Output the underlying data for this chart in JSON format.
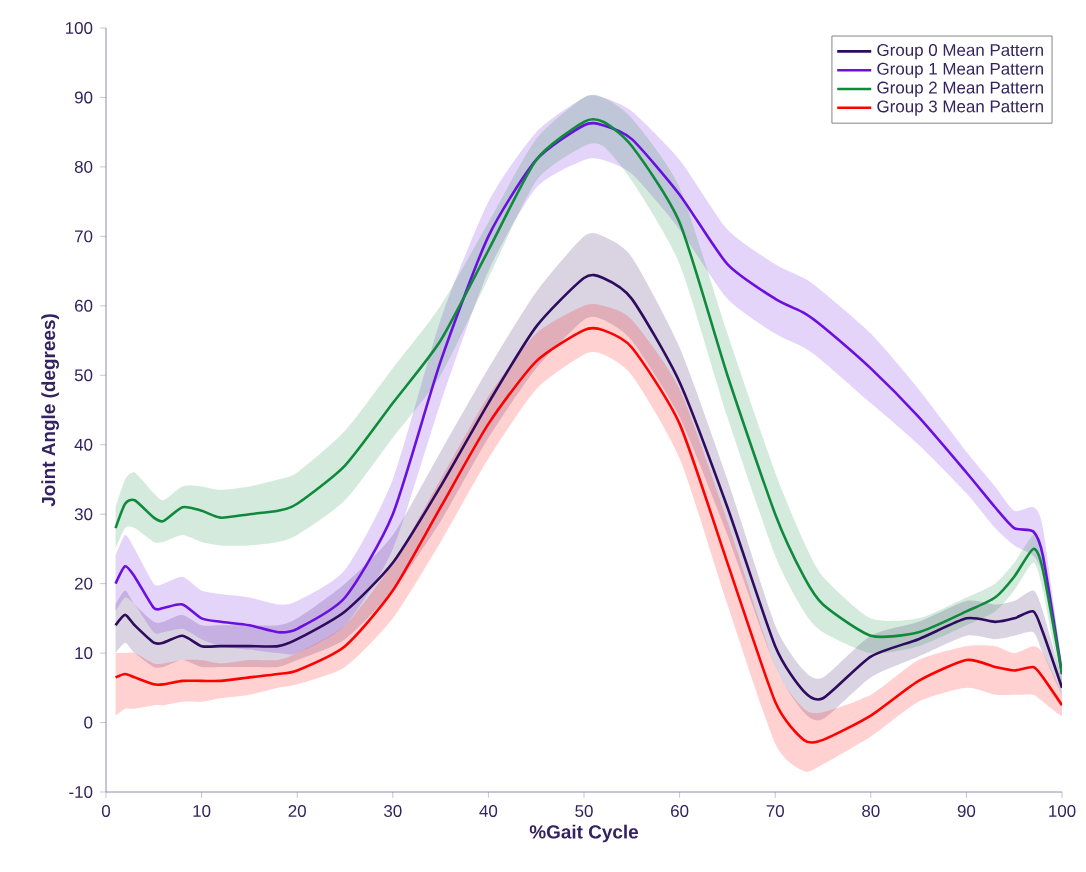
{
  "chart_data": {
    "type": "line",
    "xlabel": "%Gait Cycle",
    "ylabel": "Joint Angle (degrees)",
    "xlim": [
      0,
      100
    ],
    "ylim": [
      -10,
      100
    ],
    "xticks": [
      0,
      10,
      20,
      30,
      40,
      50,
      60,
      70,
      80,
      90,
      100
    ],
    "yticks": [
      -10,
      0,
      10,
      20,
      30,
      40,
      50,
      60,
      70,
      80,
      90,
      100
    ],
    "grid": false,
    "legend": "top right",
    "marker": "none",
    "line_style": "solid",
    "x": [
      1,
      2,
      3,
      5,
      6,
      8,
      10,
      12,
      15,
      18,
      20,
      25,
      30,
      35,
      40,
      45,
      50,
      52,
      55,
      60,
      65,
      70,
      73,
      75,
      80,
      85,
      90,
      93,
      95,
      97,
      98,
      100
    ],
    "series": [
      {
        "name": "Group 0 Mean Pattern",
        "color": "#2e0b5e",
        "values": [
          14,
          15.5,
          14,
          11.5,
          11.5,
          12.5,
          11,
          11,
          11,
          11,
          12,
          16,
          23,
          34,
          46,
          57,
          64,
          64,
          61,
          49,
          31,
          11,
          4.5,
          3.5,
          9.5,
          12,
          15,
          14.5,
          15,
          16,
          13,
          5
        ],
        "lower": [
          10,
          11.5,
          10,
          8,
          8,
          9,
          8,
          8,
          8,
          8,
          9,
          12,
          19,
          29,
          41,
          51,
          58,
          58,
          55,
          44,
          27,
          8,
          1.5,
          0.5,
          6.5,
          9.5,
          12.5,
          12,
          12.5,
          13,
          10,
          4
        ],
        "upper": [
          17,
          19,
          17,
          14.5,
          14.5,
          15.5,
          14,
          14,
          14,
          14,
          15,
          20,
          27,
          39,
          51,
          62,
          70,
          70,
          67,
          54,
          35,
          14,
          7.5,
          6.5,
          12.5,
          14.5,
          17.5,
          17,
          17.5,
          19,
          16,
          6
        ]
      },
      {
        "name": "Group 1 Mean Pattern",
        "color": "#6a0fe0",
        "values": [
          20,
          22.5,
          21,
          16.5,
          16.5,
          17,
          15,
          14.5,
          14,
          13,
          13.5,
          18,
          30,
          52,
          70,
          81,
          86,
          86,
          84,
          76,
          66,
          61,
          59,
          57,
          51,
          44,
          36,
          31,
          28,
          27.5,
          24,
          7
        ],
        "lower": [
          16,
          18,
          17,
          13,
          13,
          13.5,
          12,
          11,
          10.5,
          10,
          10,
          14,
          25,
          46,
          65,
          77,
          81,
          81,
          79,
          71,
          61,
          56,
          54,
          52,
          46,
          40,
          33,
          28,
          25.5,
          24,
          21,
          6
        ],
        "upper": [
          24,
          27,
          25,
          20,
          20,
          21,
          19,
          18.5,
          18,
          17,
          17.5,
          22,
          35,
          58,
          75,
          85,
          90,
          90,
          88,
          81,
          71,
          66,
          64,
          62,
          56,
          48,
          39,
          34,
          30.5,
          31,
          28,
          8
        ]
      },
      {
        "name": "Group 2 Mean Pattern",
        "color": "#0f8a3c",
        "values": [
          28,
          31.5,
          32,
          29.5,
          29,
          31,
          30.5,
          29.5,
          30,
          30.5,
          31.5,
          37,
          46,
          55,
          68,
          81,
          86.5,
          86.5,
          83,
          72,
          50,
          30,
          21,
          17,
          12.5,
          13,
          16,
          18,
          21,
          25,
          22,
          7
        ],
        "lower": [
          25,
          28,
          28,
          26,
          26,
          27,
          26,
          25.5,
          25.5,
          26,
          27,
          32,
          41,
          50,
          64,
          78,
          83,
          83,
          78,
          66,
          44,
          24,
          16,
          13,
          10,
          11,
          14,
          16,
          19,
          23,
          19,
          5
        ],
        "upper": [
          31,
          35,
          36,
          33,
          32,
          34,
          34,
          33.5,
          34,
          35,
          36,
          42,
          51,
          60,
          72,
          84,
          90,
          90,
          87,
          77,
          56,
          36,
          26,
          21,
          15,
          15,
          18,
          20,
          23,
          27,
          25,
          9
        ]
      },
      {
        "name": "Group 3 Mean Pattern",
        "color": "#ff0000",
        "values": [
          6.5,
          7,
          6.5,
          5.5,
          5.5,
          6,
          6,
          6,
          6.5,
          7,
          7.5,
          11,
          19,
          31,
          43,
          52,
          56.5,
          56.5,
          54,
          43,
          23,
          3,
          -2.5,
          -2.5,
          1,
          6,
          9,
          8,
          7.5,
          8,
          6.5,
          2.5
        ],
        "lower": [
          1,
          2,
          2,
          2.5,
          2.5,
          3,
          3,
          3.5,
          4,
          5,
          5.5,
          8,
          15,
          26,
          38,
          48,
          53,
          53,
          50,
          38,
          17,
          -3,
          -7,
          -6,
          -2,
          3,
          5,
          4,
          4,
          4,
          3,
          1
        ],
        "upper": [
          10,
          10,
          10,
          8.5,
          8.5,
          9,
          9,
          8.5,
          9,
          9,
          10,
          14,
          23,
          35,
          47,
          56,
          60,
          60,
          58,
          48,
          29,
          8,
          2,
          1.5,
          4,
          9,
          11,
          11,
          10,
          11,
          10,
          4
        ]
      }
    ]
  }
}
